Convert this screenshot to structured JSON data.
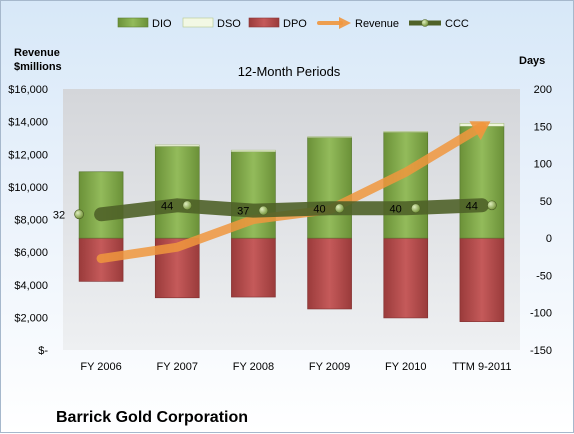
{
  "chart_data": {
    "type": "bar",
    "title": "12-Month Periods",
    "company": "Barrick Gold Corporation",
    "categories": [
      "FY 2006",
      "FY 2007",
      "FY 2008",
      "FY 2009",
      "FY 2010",
      "TTM 9-2011"
    ],
    "left_axis": {
      "label_line1": "Revenue",
      "label_line2": "$millions",
      "ylim": [
        0,
        16000
      ],
      "tick_labels": [
        "$-",
        "$2,000",
        "$4,000",
        "$6,000",
        "$8,000",
        "$10,000",
        "$12,000",
        "$14,000",
        "$16,000"
      ]
    },
    "right_axis": {
      "label": "Days",
      "ylim": [
        -150,
        200
      ],
      "tick_labels": [
        "-150",
        "-100",
        "-50",
        "0",
        "50",
        "100",
        "150",
        "200"
      ]
    },
    "series": [
      {
        "name": "DIO",
        "axis": "right",
        "kind": "stacked-bar",
        "values": [
          89,
          123,
          116,
          135,
          142,
          150
        ],
        "color": "#7ea54a"
      },
      {
        "name": "DSO",
        "axis": "right",
        "kind": "stacked-bar",
        "values": [
          0,
          2,
          2,
          1,
          1,
          4
        ],
        "color": "#eaf3d6"
      },
      {
        "name": "DPO",
        "axis": "right",
        "kind": "bar",
        "values": [
          -58,
          -80,
          -79,
          -95,
          -107,
          -112
        ],
        "color": "#b24b4b"
      },
      {
        "name": "Revenue",
        "axis": "left",
        "kind": "arrow-line",
        "values": [
          5600,
          6300,
          8000,
          8600,
          10900,
          13700
        ],
        "color": "#f0963d"
      },
      {
        "name": "CCC",
        "axis": "right",
        "kind": "line",
        "values": [
          32,
          44,
          37,
          40,
          40,
          44
        ],
        "data_labels": [
          "32",
          "44",
          "37",
          "40",
          "40",
          "44"
        ],
        "color": "#4f6228"
      }
    ],
    "legend_position": "top",
    "grid": false
  }
}
